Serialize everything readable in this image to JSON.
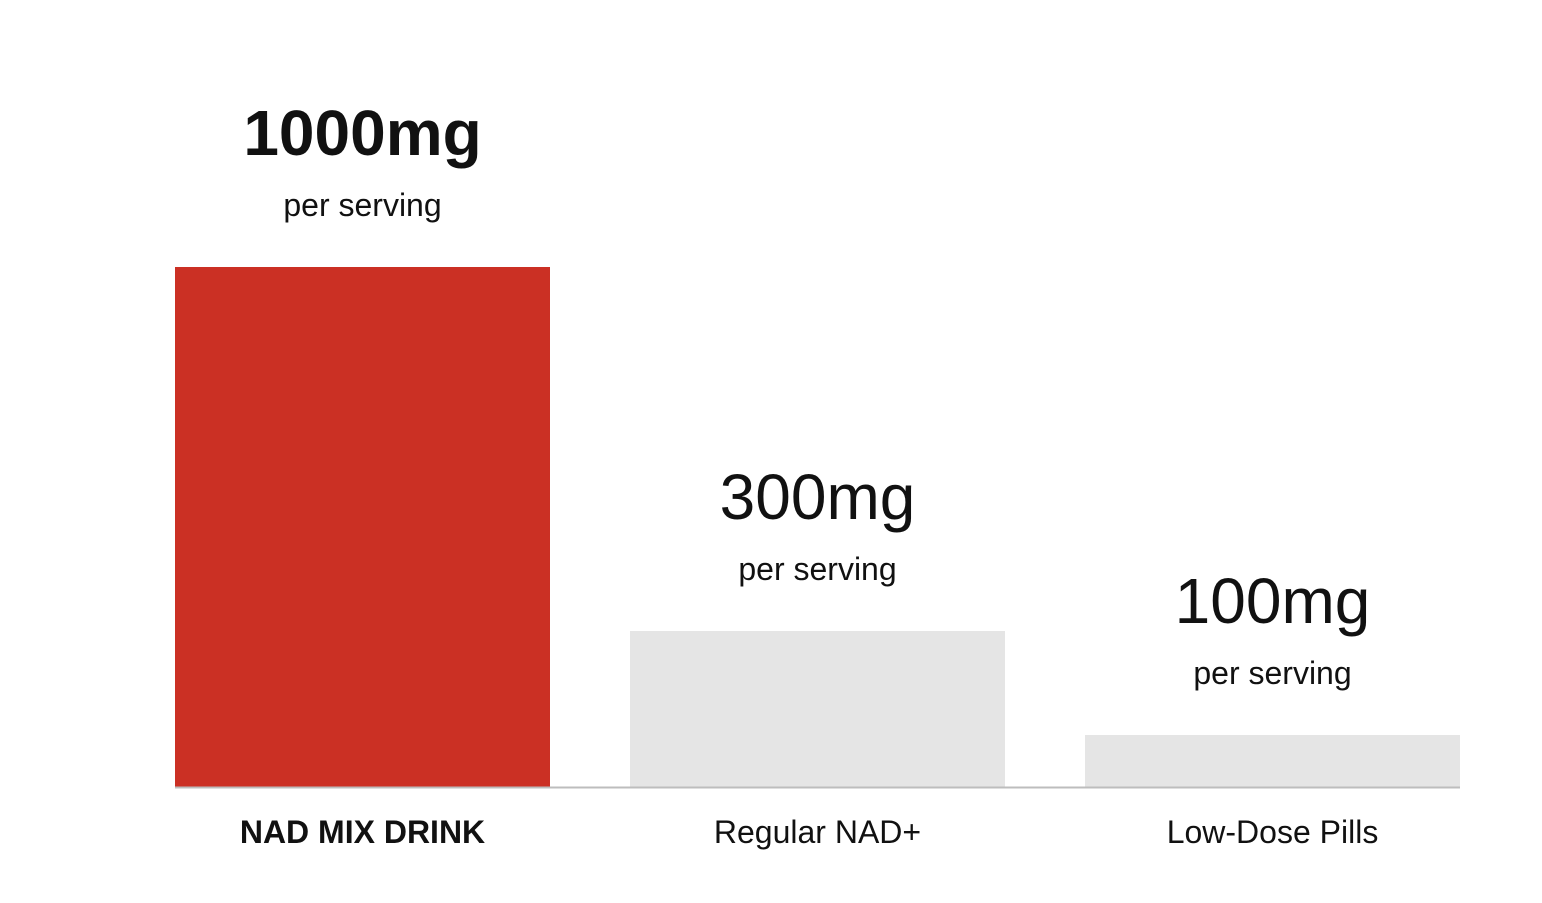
{
  "chart_data": {
    "type": "bar",
    "categories": [
      "NAD MIX DRINK",
      "Regular NAD+",
      "Low-Dose Pills"
    ],
    "values": [
      1000,
      300,
      100
    ],
    "value_labels": [
      "1000mg",
      "300mg",
      "100mg"
    ],
    "sublabel": "per serving",
    "highlight_index": 0,
    "colors": {
      "highlight": "#CB3024",
      "default": "#E5E5E5",
      "baseline": "#BDBDBD",
      "text": "#111111"
    },
    "ylim": [
      0,
      1000
    ],
    "grid": false,
    "title": "",
    "xlabel": "",
    "ylabel": ""
  }
}
